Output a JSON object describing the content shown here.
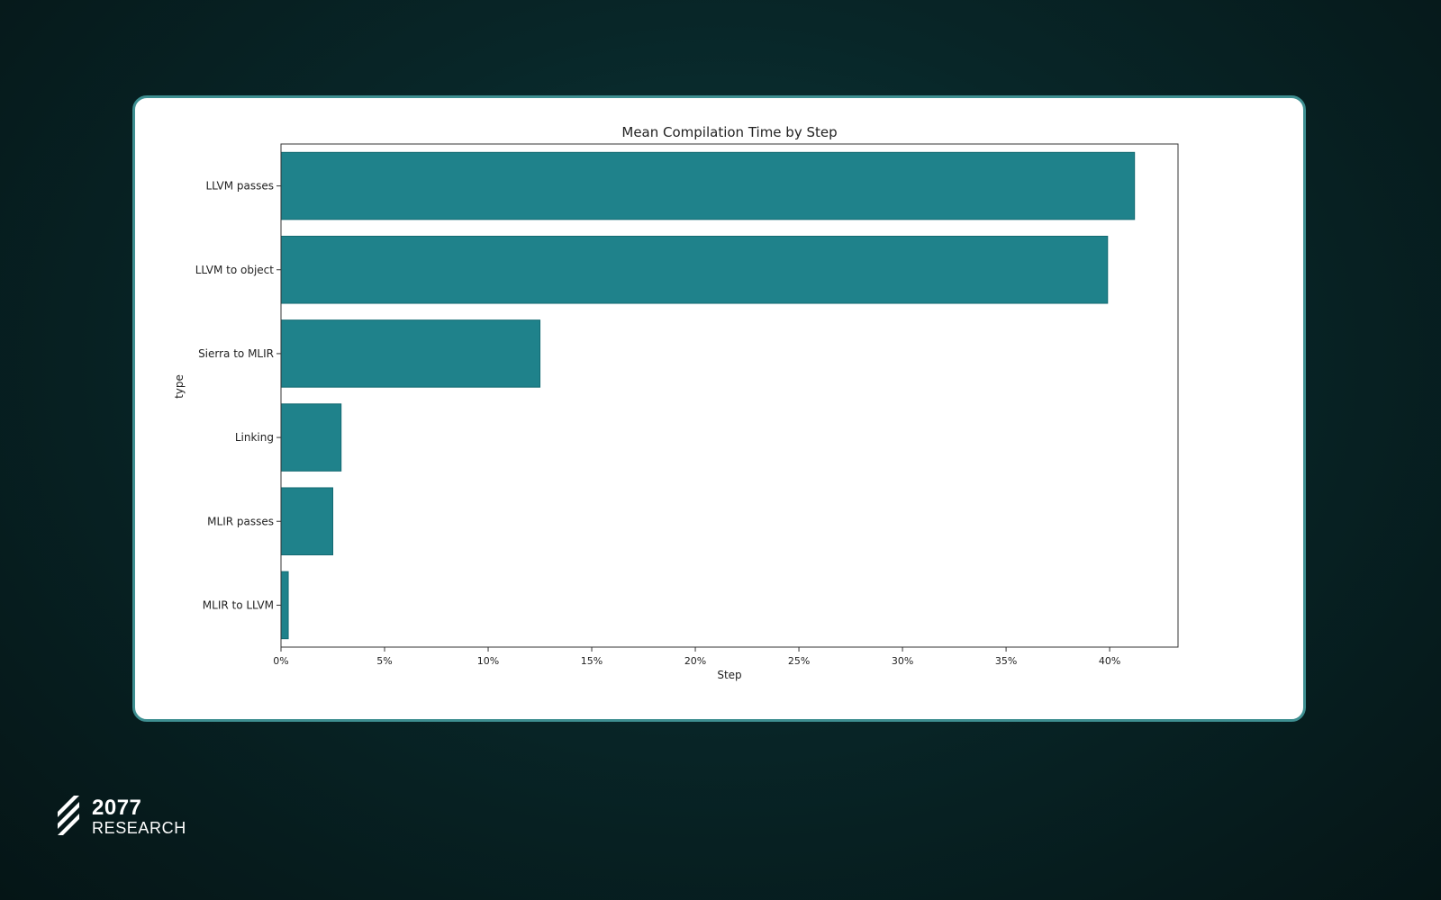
{
  "colors": {
    "bar_fill": "#1f828b",
    "bar_edge": "#136a72",
    "card_border": "#3e8f91",
    "background": "#082628"
  },
  "chart_data": {
    "type": "bar",
    "orientation": "horizontal",
    "title": "Mean Compilation Time by Step",
    "xlabel": "Step",
    "ylabel": "type",
    "categories": [
      "LLVM passes",
      "LLVM to object",
      "Sierra to MLIR",
      "Linking",
      "MLIR passes",
      "MLIR to LLVM"
    ],
    "values": [
      41.2,
      39.9,
      12.5,
      2.9,
      2.5,
      0.35
    ],
    "value_unit": "%",
    "xlim": [
      0,
      43.3
    ],
    "xticks": [
      0,
      5,
      10,
      15,
      20,
      25,
      30,
      35,
      40
    ],
    "xtick_labels": [
      "0%",
      "5%",
      "10%",
      "15%",
      "20%",
      "25%",
      "30%",
      "35%",
      "40%"
    ],
    "grid": false,
    "legend": "none"
  },
  "logo": {
    "number": "2077",
    "subtitle": "RESEARCH",
    "icon": "stripes-logo-icon"
  }
}
